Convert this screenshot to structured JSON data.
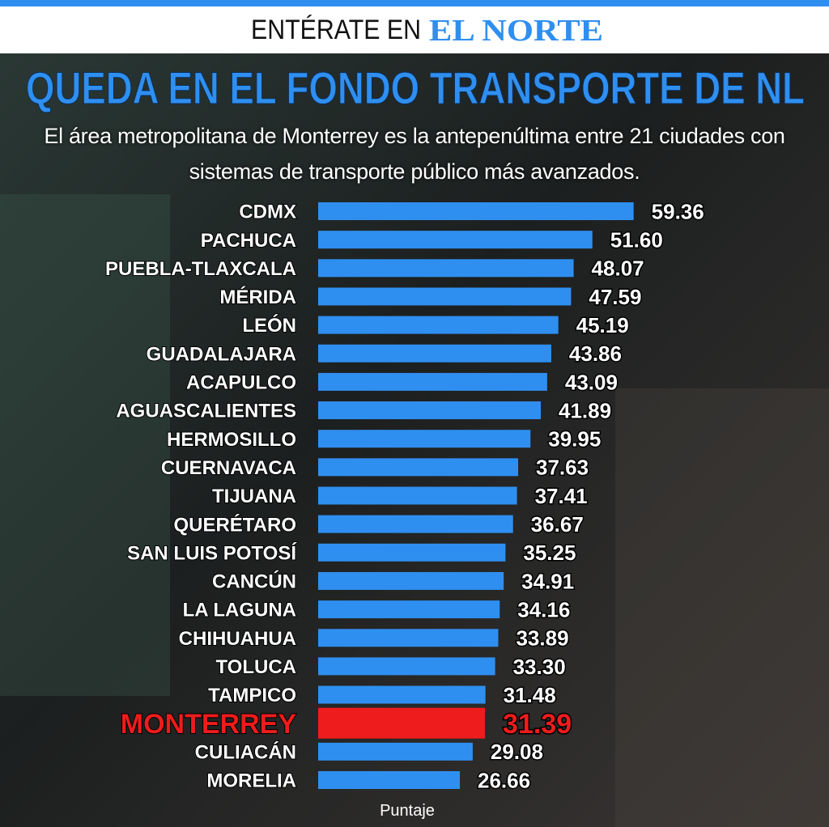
{
  "header": {
    "text": "ENTÉRATE EN",
    "brand": "EL NORTE"
  },
  "chart_data": {
    "type": "bar",
    "orientation": "horizontal",
    "title": "QUEDA EN EL FONDO TRANSPORTE DE NL",
    "subtitle": "El área metropolitana de Monterrey es la antepenúltima entre 21 ciudades con sistemas de transporte público más avanzados.",
    "x_label": "Puntaje",
    "categories": [
      "CDMX",
      "PACHUCA",
      "PUEBLA-TLAXCALA",
      "MÉRIDA",
      "LEÓN",
      "GUADALAJARA",
      "ACAPULCO",
      "AGUASCALIENTES",
      "HERMOSILLO",
      "CUERNAVACA",
      "TIJUANA",
      "QUERÉTARO",
      "SAN LUIS POTOSÍ",
      "CANCÚN",
      "LA LAGUNA",
      "CHIHUAHUA",
      "TOLUCA",
      "TAMPICO",
      "MONTERREY",
      "CULIACÁN",
      "MORELIA"
    ],
    "values": [
      59.36,
      51.6,
      48.07,
      47.59,
      45.19,
      43.86,
      43.09,
      41.89,
      39.95,
      37.63,
      37.41,
      36.67,
      35.25,
      34.91,
      34.16,
      33.89,
      33.3,
      31.48,
      31.39,
      29.08,
      26.66
    ],
    "value_labels": [
      "59.36",
      "51.60",
      "48.07",
      "47.59",
      "45.19",
      "43.86",
      "43.09",
      "41.89",
      "39.95",
      "37.63",
      "37.41",
      "36.67",
      "35.25",
      "34.91",
      "34.16",
      "33.89",
      "33.30",
      "31.48",
      "31.39",
      "29.08",
      "26.66"
    ],
    "color": "#2f8ff0",
    "colors": [
      "#2f8ff0",
      "#2f8ff0",
      "#2f8ff0",
      "#2f8ff0",
      "#2f8ff0",
      "#2f8ff0",
      "#2f8ff0",
      "#2f8ff0",
      "#2f8ff0",
      "#2f8ff0",
      "#2f8ff0",
      "#2f8ff0",
      "#2f8ff0",
      "#2f8ff0",
      "#2f8ff0",
      "#2f8ff0",
      "#2f8ff0",
      "#2f8ff0",
      "#ee1c1c",
      "#2f8ff0",
      "#2f8ff0"
    ],
    "xlim": [
      0,
      62
    ]
  }
}
